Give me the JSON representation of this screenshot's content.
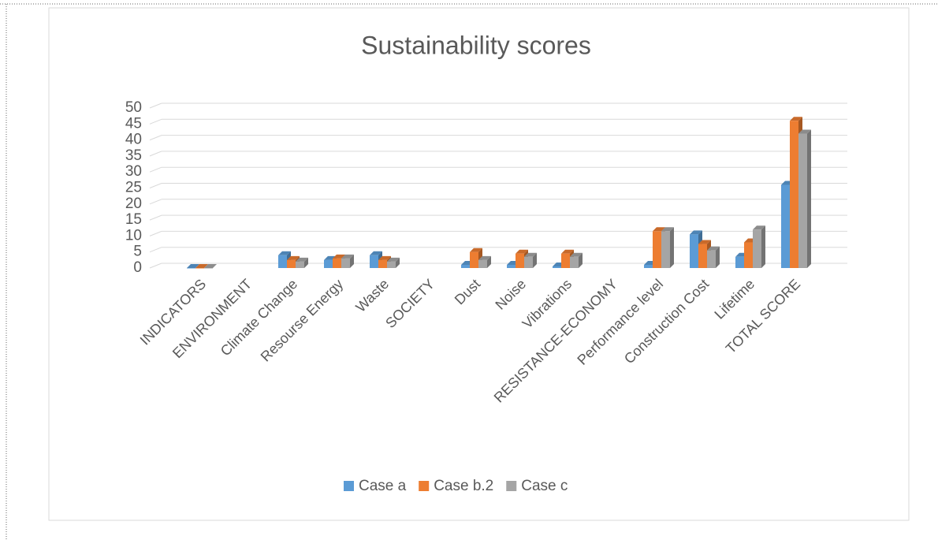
{
  "chart_data": {
    "type": "bar",
    "title": "Sustainability scores",
    "categories": [
      "INDICATORS",
      "ENVIRONMENT",
      "Climate Change",
      "Resourse Energy",
      "Waste",
      "SOCIETY",
      "Dust",
      "Noise",
      "Vibrations",
      "RESISTANCE-ECONOMY",
      "Performance level",
      "Construction Cost",
      "Lifetime",
      "TOTAL SCORE"
    ],
    "series": [
      {
        "name": "Case a",
        "color": "#5b9bd5",
        "values": [
          0,
          null,
          4,
          2.5,
          4,
          null,
          1,
          1,
          0.5,
          null,
          1,
          10.5,
          3.5,
          26
        ]
      },
      {
        "name": "Case b.2",
        "color": "#ed7d31",
        "values": [
          0,
          null,
          2.5,
          3,
          2.5,
          null,
          5,
          4.5,
          4.5,
          null,
          11.5,
          7.5,
          8,
          46
        ]
      },
      {
        "name": "Case c",
        "color": "#a5a5a5",
        "values": [
          0,
          null,
          2,
          3,
          2,
          null,
          2.5,
          3.5,
          3.5,
          null,
          11.5,
          5.5,
          12,
          42
        ]
      }
    ],
    "ylim": [
      0,
      50
    ],
    "yticks": [
      0,
      5,
      10,
      15,
      20,
      25,
      30,
      35,
      40,
      45,
      50
    ],
    "grid": true,
    "legend": "bottom"
  }
}
